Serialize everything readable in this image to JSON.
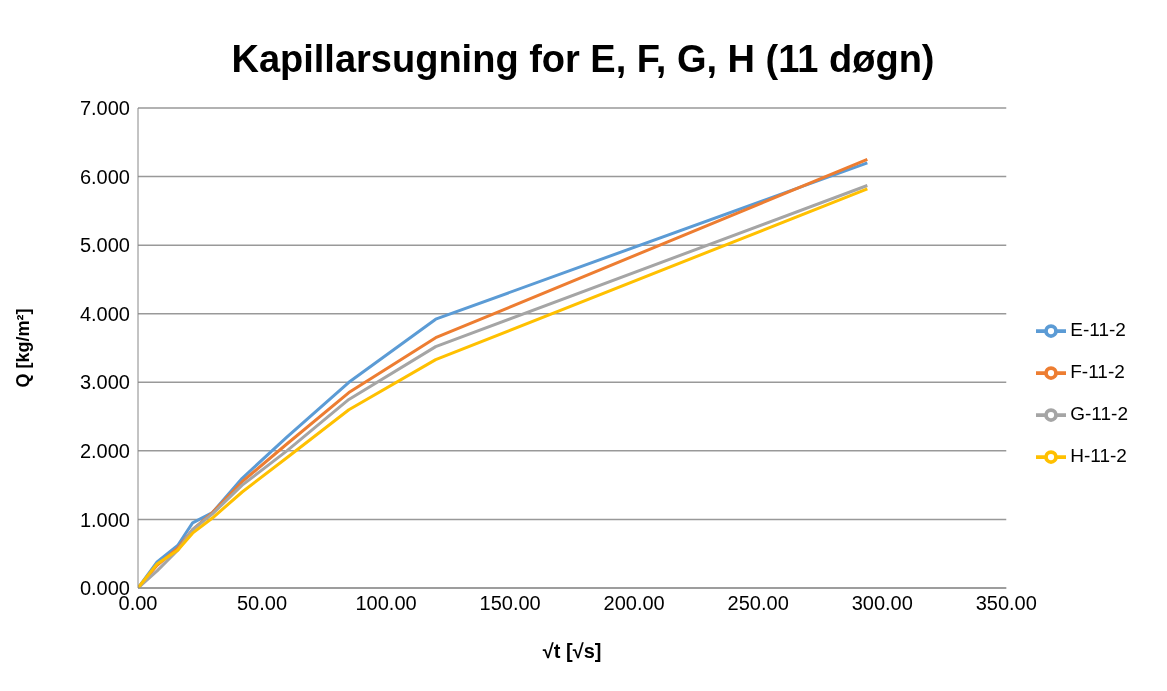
{
  "chart_data": {
    "type": "line",
    "title": "Kapillarsugning for E, F, G, H (11 døgn)",
    "xlabel": "√t [√s]",
    "ylabel": "Q [kg/m²]",
    "x": [
      0,
      7.7,
      16,
      22,
      30,
      42,
      60,
      85,
      120,
      294
    ],
    "series": [
      {
        "name": "E-11-2",
        "color": "#5b9bd5",
        "values": [
          0,
          0.38,
          0.62,
          0.95,
          1.1,
          1.6,
          2.2,
          3.0,
          3.92,
          6.2
        ]
      },
      {
        "name": "F-11-2",
        "color": "#ed7d31",
        "values": [
          0,
          0.33,
          0.58,
          0.85,
          1.1,
          1.55,
          2.1,
          2.85,
          3.65,
          6.25
        ]
      },
      {
        "name": "G-11-2",
        "color": "#a5a5a5",
        "values": [
          0,
          0.25,
          0.55,
          0.85,
          1.08,
          1.5,
          2.0,
          2.75,
          3.52,
          5.87
        ]
      },
      {
        "name": "H-11-2",
        "color": "#ffc000",
        "values": [
          0,
          0.35,
          0.55,
          0.8,
          1.02,
          1.4,
          1.9,
          2.6,
          3.33,
          5.82
        ]
      }
    ],
    "xlim": [
      0,
      350
    ],
    "xticks": [
      {
        "value": 0,
        "label": "0.00"
      },
      {
        "value": 50,
        "label": "50.00"
      },
      {
        "value": 100,
        "label": "100.00"
      },
      {
        "value": 150,
        "label": "150.00"
      },
      {
        "value": 200,
        "label": "200.00"
      },
      {
        "value": 250,
        "label": "250.00"
      },
      {
        "value": 300,
        "label": "300.00"
      },
      {
        "value": 350,
        "label": "350.00"
      }
    ],
    "ylim": [
      0,
      7
    ],
    "yticks": [
      {
        "value": 0,
        "label": "0.000"
      },
      {
        "value": 1,
        "label": "1.000"
      },
      {
        "value": 2,
        "label": "2.000"
      },
      {
        "value": 3,
        "label": "3.000"
      },
      {
        "value": 4,
        "label": "4.000"
      },
      {
        "value": 5,
        "label": "5.000"
      },
      {
        "value": 6,
        "label": "6.000"
      },
      {
        "value": 7,
        "label": "7.000"
      }
    ],
    "grid": "y",
    "legend": "right",
    "marker": "none",
    "line_style": "solid"
  }
}
